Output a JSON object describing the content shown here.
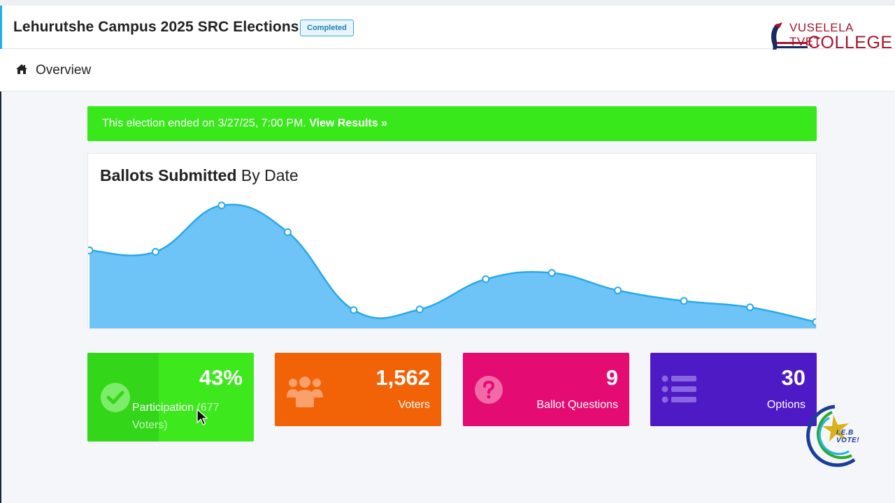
{
  "header": {
    "title": "Lehurutshe Campus 2025 SRC Elections",
    "status_badge": "Completed",
    "logo": {
      "line1": "VUSELELA TVET",
      "line2": "COLLEGE"
    }
  },
  "nav": {
    "icon": "home-icon",
    "label": "Overview"
  },
  "alert": {
    "message": "This election ended on 3/27/25, 7:00 PM.",
    "link_label": "View Results »",
    "color": "#39e81b"
  },
  "chart_title": {
    "bold": "Ballots Submitted",
    "rest": "By Date"
  },
  "chart_data": {
    "type": "area",
    "title": "Ballots Submitted By Date",
    "x": [
      1,
      2,
      3,
      4,
      5,
      6,
      7,
      8,
      9,
      10,
      11,
      12
    ],
    "values": [
      112,
      110,
      176,
      138,
      27,
      28,
      71,
      80,
      55,
      40,
      31,
      10
    ],
    "ylim": [
      0,
      190
    ],
    "grid": false,
    "fill_color": "#6ec3f7",
    "line_color": "#2aa9e8"
  },
  "stats": [
    {
      "name": "participation",
      "value": "43%",
      "label_main": "Participation",
      "label_extra": "(677 Voters)",
      "icon": "check-circle-icon",
      "color": "#3de81d"
    },
    {
      "name": "voters",
      "value": "1,562",
      "label": "Voters",
      "icon": "users-icon",
      "color": "#f26207"
    },
    {
      "name": "ballot-questions",
      "value": "9",
      "label": "Ballot Questions",
      "icon": "question-circle-icon",
      "color": "#e40c73"
    },
    {
      "name": "options",
      "value": "30",
      "label": "Options",
      "icon": "list-icon",
      "color": "#4e1ac6"
    }
  ],
  "watermark": {
    "text": "I.E.B VOTE!"
  }
}
